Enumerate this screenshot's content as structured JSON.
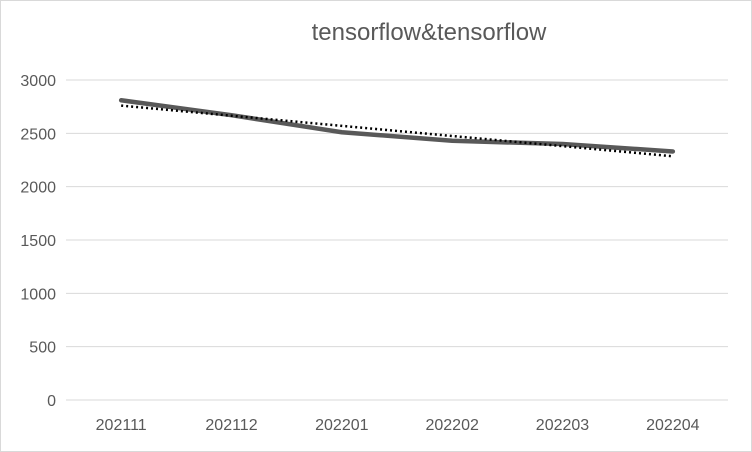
{
  "chart_data": {
    "type": "line",
    "title": "tensorflow&tensorflow",
    "xlabel": "",
    "ylabel": "",
    "categories": [
      "202111",
      "202112",
      "202201",
      "202202",
      "202203",
      "202204"
    ],
    "ylim": [
      0,
      3000
    ],
    "yticks": [
      "0",
      "500",
      "1000",
      "1500",
      "2000",
      "2500",
      "3000"
    ],
    "grid": true,
    "legend": "none",
    "series": [
      {
        "values": [
          2810,
          2670,
          2510,
          2430,
          2400,
          2330
        ],
        "color": "#595959",
        "style": "solid"
      }
    ],
    "trendline": {
      "type": "linear",
      "values": [
        2760,
        2665,
        2570,
        2475,
        2380,
        2285
      ],
      "color": "#000000",
      "style": "dotted"
    }
  }
}
